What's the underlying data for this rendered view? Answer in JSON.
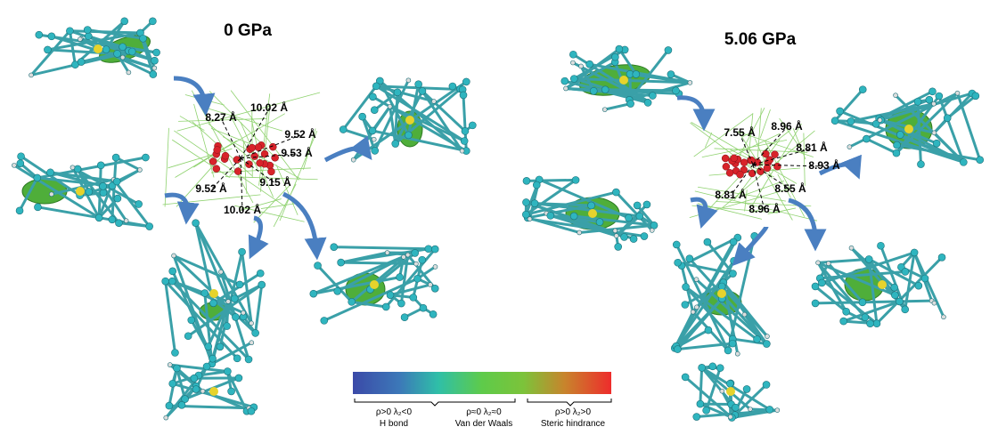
{
  "panels": [
    {
      "title": "0 GPa",
      "distances": [
        "8.27 Å",
        "10.02 Å",
        "9.52 Å",
        "9.53 Å",
        "9.52 Å",
        "9.15 Å",
        "10.02 Å"
      ]
    },
    {
      "title": "5.06 GPa",
      "distances": [
        "7.55 Å",
        "8.96 Å",
        "8.81 Å",
        "8.93 Å",
        "8.81 Å",
        "8.55 Å",
        "8.96 Å"
      ]
    }
  ],
  "legend": {
    "sections": [
      {
        "condition": "ρ>0  λ₂<0",
        "meaning": "H bond"
      },
      {
        "condition": "ρ≈0  λ₂≈0",
        "meaning": "Van der Waals"
      },
      {
        "condition": "ρ>0  λ₂>0",
        "meaning": "Steric hindrance"
      }
    ]
  }
}
